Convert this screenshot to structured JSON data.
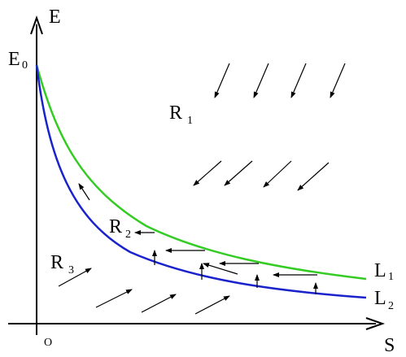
{
  "axes": {
    "y": {
      "text": "E"
    },
    "x": {
      "text": "S"
    },
    "origin": "O",
    "e0": {
      "text": "E",
      "sub": "0"
    }
  },
  "regions": [
    {
      "text": "R",
      "sub": "1"
    },
    {
      "text": "R",
      "sub": "2"
    },
    {
      "text": "R",
      "sub": "3"
    }
  ],
  "curves": [
    {
      "text": "L",
      "sub": "1"
    },
    {
      "text": "L",
      "sub": "2"
    }
  ]
}
